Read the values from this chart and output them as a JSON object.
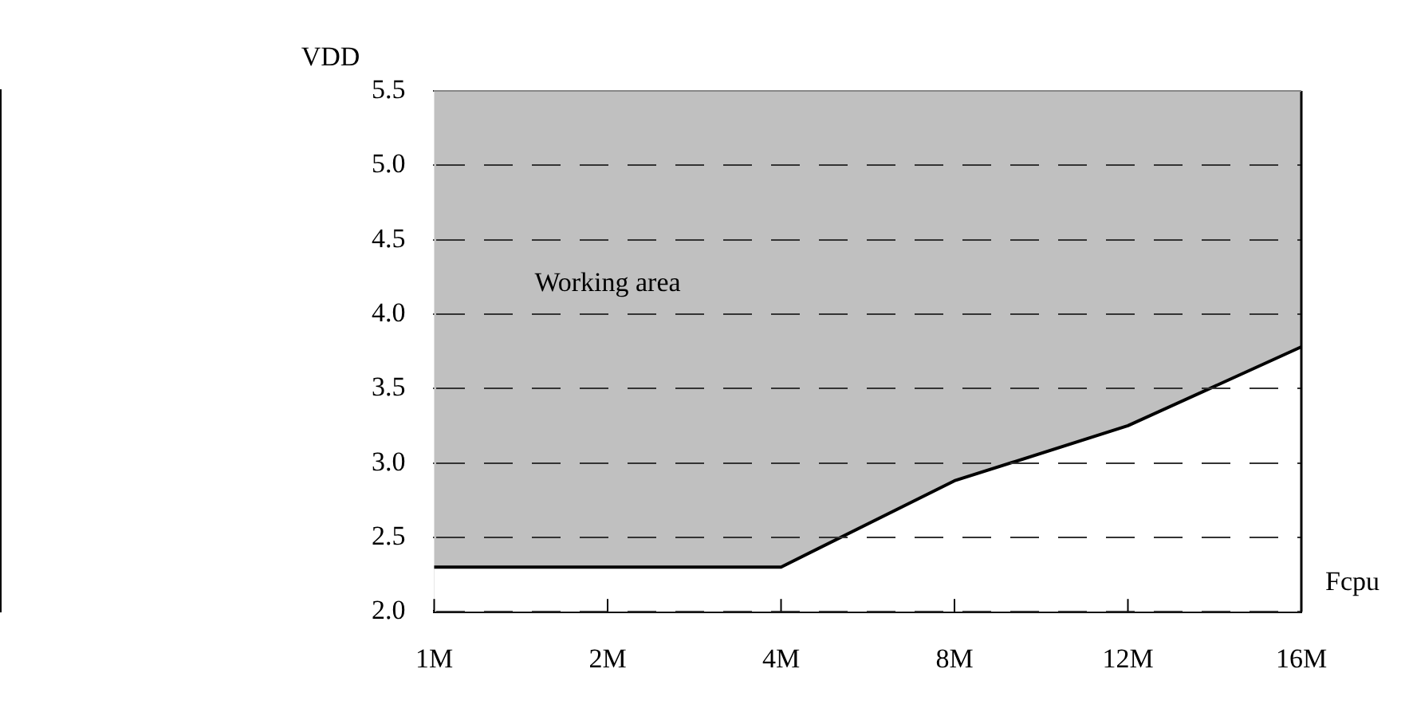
{
  "chart_data": {
    "type": "area",
    "xlabel": "Fcpu",
    "ylabel": "VDD",
    "annotations": [
      "Working area"
    ],
    "categories": [
      "1M",
      "2M",
      "4M",
      "8M",
      "12M",
      "16M"
    ],
    "series": [
      {
        "color": "#000000",
        "values": [
          2.3,
          2.3,
          2.3,
          2.88,
          3.25,
          3.78
        ]
      }
    ],
    "ylim": [
      2.0,
      5.5
    ],
    "yticks": [
      {
        "value": 2,
        "label": "2.0"
      },
      2.5,
      {
        "value": 3,
        "label": "3.0"
      },
      3.5,
      {
        "value": 4,
        "label": "4.0"
      },
      4.5,
      {
        "value": 5,
        "label": "5.0"
      },
      5.5
    ],
    "grid": "y",
    "legend": false
  }
}
